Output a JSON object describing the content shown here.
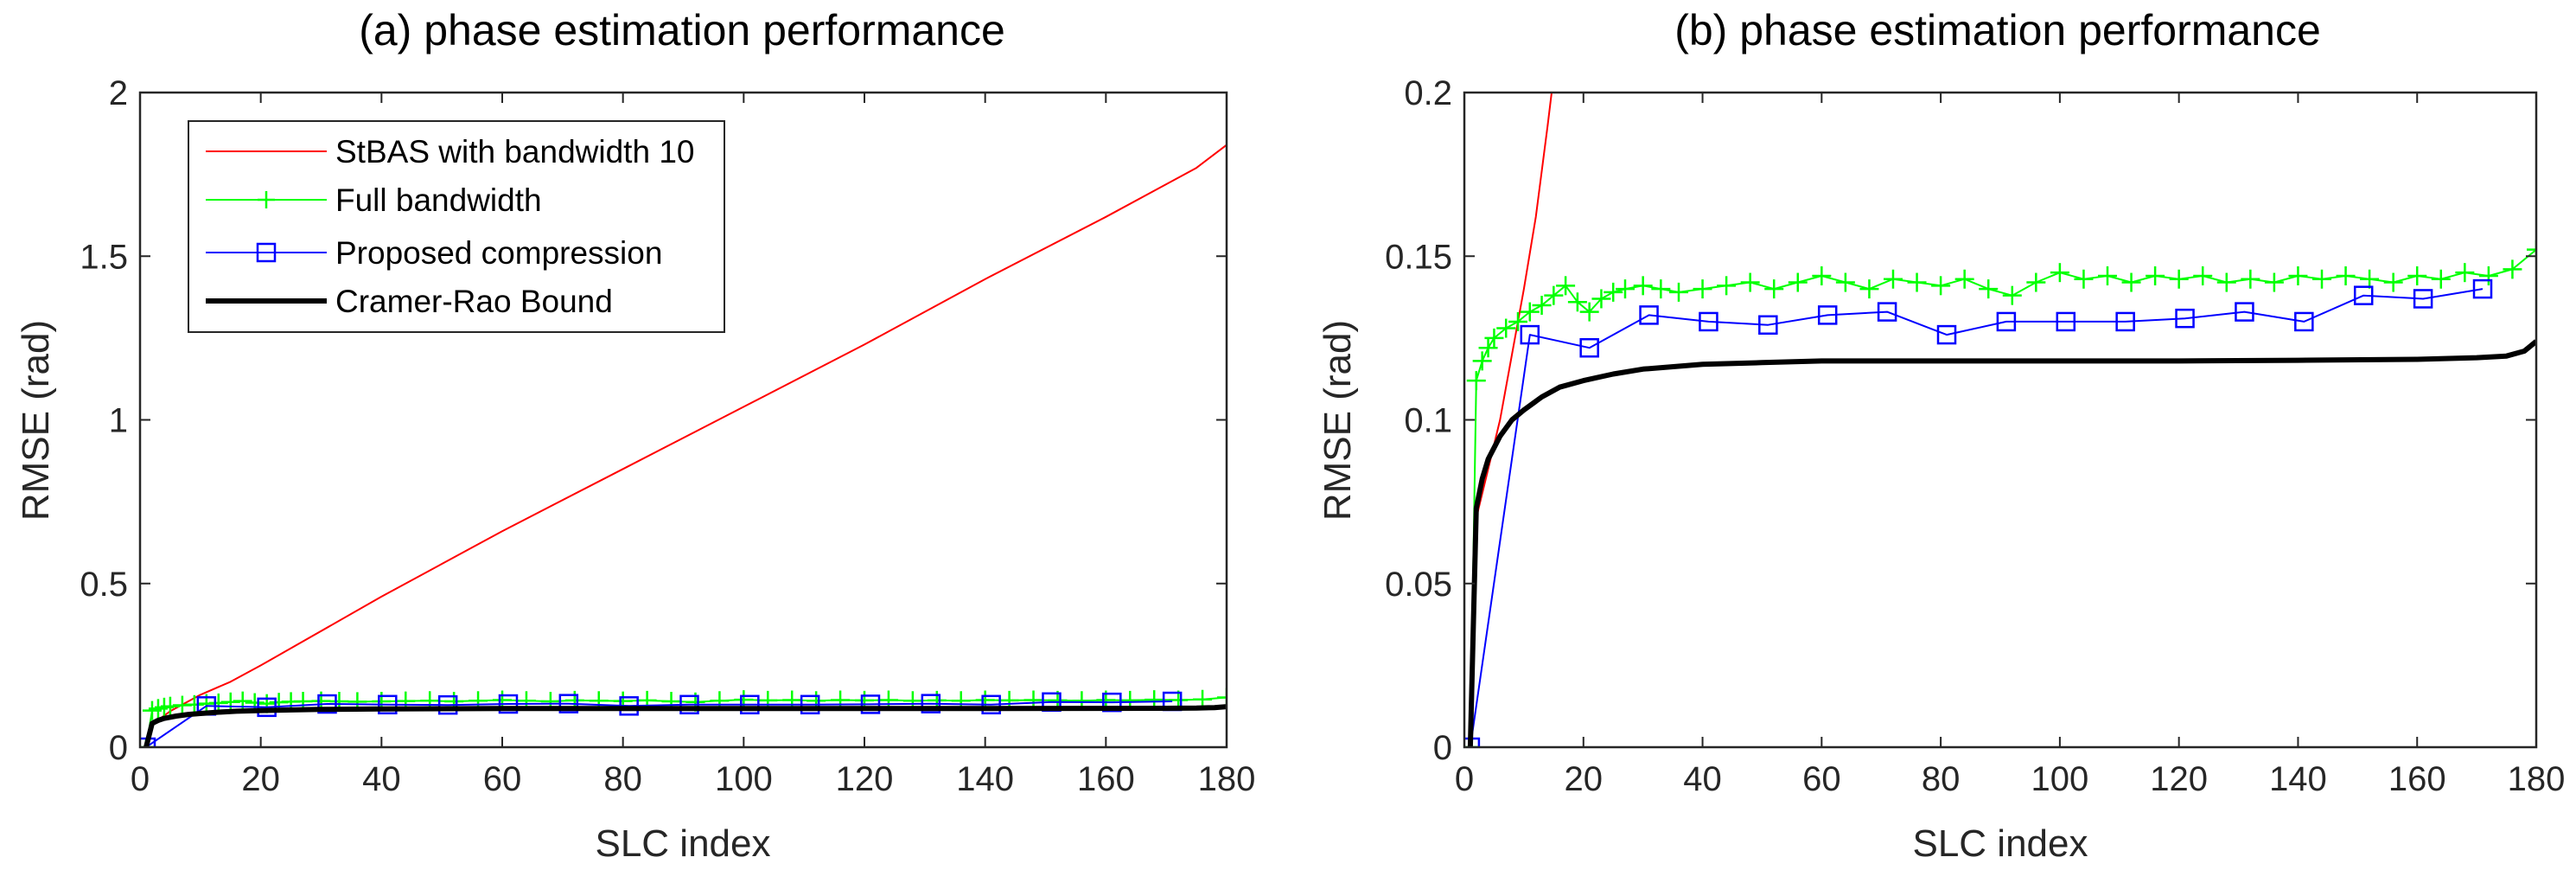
{
  "figure": {
    "title_a": "(a) phase estimation performance",
    "title_b": "(b) phase estimation performance"
  },
  "chart_data": [
    {
      "type": "line",
      "title": "(a) phase estimation performance",
      "xlabel": "SLC index",
      "ylabel": "RMSE (rad)",
      "xlim": [
        0,
        180
      ],
      "ylim": [
        0,
        2
      ],
      "xticks": [
        0,
        20,
        40,
        60,
        80,
        100,
        120,
        140,
        160,
        180
      ],
      "yticks": [
        0,
        0.5,
        1,
        1.5,
        2
      ],
      "ytick_labels": [
        "0",
        "0.5",
        "1",
        "1.5",
        "2"
      ],
      "legend_position": "top-left",
      "series": [
        {
          "name": "StBAS with bandwidth 10",
          "color": "#ff0000",
          "marker": "none",
          "x": [
            1,
            2,
            5,
            10,
            15,
            20,
            40,
            60,
            80,
            100,
            120,
            140,
            160,
            170,
            175,
            180
          ],
          "y": [
            0.0,
            0.07,
            0.11,
            0.16,
            0.2,
            0.25,
            0.46,
            0.66,
            0.85,
            1.04,
            1.23,
            1.43,
            1.62,
            1.72,
            1.77,
            1.84
          ]
        },
        {
          "name": "Full bandwidth",
          "color": "#00ff00",
          "marker": "plus",
          "x": [
            1,
            2,
            3,
            4,
            5,
            7,
            9,
            11,
            13,
            15,
            17,
            19,
            21,
            23,
            25,
            27,
            30,
            33,
            36,
            40,
            44,
            48,
            52,
            56,
            60,
            64,
            68,
            72,
            76,
            80,
            84,
            88,
            92,
            96,
            100,
            104,
            108,
            112,
            116,
            120,
            124,
            128,
            132,
            136,
            140,
            144,
            148,
            152,
            156,
            160,
            164,
            168,
            172,
            176,
            180
          ],
          "y": [
            0.0,
            0.112,
            0.118,
            0.122,
            0.125,
            0.128,
            0.13,
            0.133,
            0.135,
            0.138,
            0.141,
            0.136,
            0.133,
            0.137,
            0.139,
            0.14,
            0.141,
            0.14,
            0.139,
            0.14,
            0.141,
            0.142,
            0.14,
            0.142,
            0.144,
            0.142,
            0.14,
            0.143,
            0.142,
            0.141,
            0.143,
            0.14,
            0.138,
            0.142,
            0.145,
            0.143,
            0.144,
            0.142,
            0.144,
            0.143,
            0.144,
            0.142,
            0.143,
            0.142,
            0.144,
            0.143,
            0.144,
            0.143,
            0.142,
            0.144,
            0.143,
            0.145,
            0.144,
            0.146,
            0.152
          ]
        },
        {
          "name": "Proposed compression",
          "color": "#0000ff",
          "marker": "square",
          "x": [
            1,
            11,
            21,
            31,
            41,
            51,
            61,
            71,
            81,
            91,
            101,
            111,
            121,
            131,
            141,
            151,
            161,
            171
          ],
          "y": [
            0.0,
            0.126,
            0.122,
            0.132,
            0.13,
            0.129,
            0.132,
            0.133,
            0.126,
            0.13,
            0.13,
            0.13,
            0.131,
            0.133,
            0.13,
            0.138,
            0.137,
            0.14
          ]
        },
        {
          "name": "Cramer-Rao Bound",
          "color": "#000000",
          "marker": "none",
          "x": [
            1,
            2,
            3,
            4,
            6,
            8,
            10,
            13,
            16,
            20,
            25,
            30,
            40,
            50,
            60,
            80,
            100,
            120,
            140,
            160,
            170,
            175,
            178,
            180
          ],
          "y": [
            0.0,
            0.073,
            0.082,
            0.088,
            0.095,
            0.1,
            0.103,
            0.107,
            0.11,
            0.112,
            0.114,
            0.1155,
            0.117,
            0.1175,
            0.118,
            0.118,
            0.118,
            0.118,
            0.1182,
            0.1185,
            0.119,
            0.1195,
            0.121,
            0.124
          ]
        }
      ]
    },
    {
      "type": "line",
      "title": "(b) phase estimation performance",
      "xlabel": "SLC index",
      "ylabel": "RMSE (rad)",
      "xlim": [
        0,
        180
      ],
      "ylim": [
        0,
        0.2
      ],
      "xticks": [
        0,
        20,
        40,
        60,
        80,
        100,
        120,
        140,
        160,
        180
      ],
      "yticks": [
        0,
        0.05,
        0.1,
        0.15,
        0.2
      ],
      "ytick_labels": [
        "0",
        "0.05",
        "0.1",
        "0.15",
        "0.2"
      ],
      "series": [
        {
          "name": "StBAS with bandwidth 10",
          "color": "#ff0000",
          "marker": "none",
          "x": [
            1,
            2,
            4,
            6,
            8,
            10,
            12,
            14,
            15
          ],
          "y": [
            0.0,
            0.07,
            0.085,
            0.1,
            0.12,
            0.14,
            0.162,
            0.19,
            0.205
          ]
        },
        {
          "name": "Full bandwidth",
          "color": "#00ff00",
          "marker": "plus",
          "same_as": 0
        },
        {
          "name": "Proposed compression",
          "color": "#0000ff",
          "marker": "square",
          "same_as": 0
        },
        {
          "name": "Cramer-Rao Bound",
          "color": "#000000",
          "marker": "none",
          "same_as": 0
        }
      ]
    }
  ]
}
